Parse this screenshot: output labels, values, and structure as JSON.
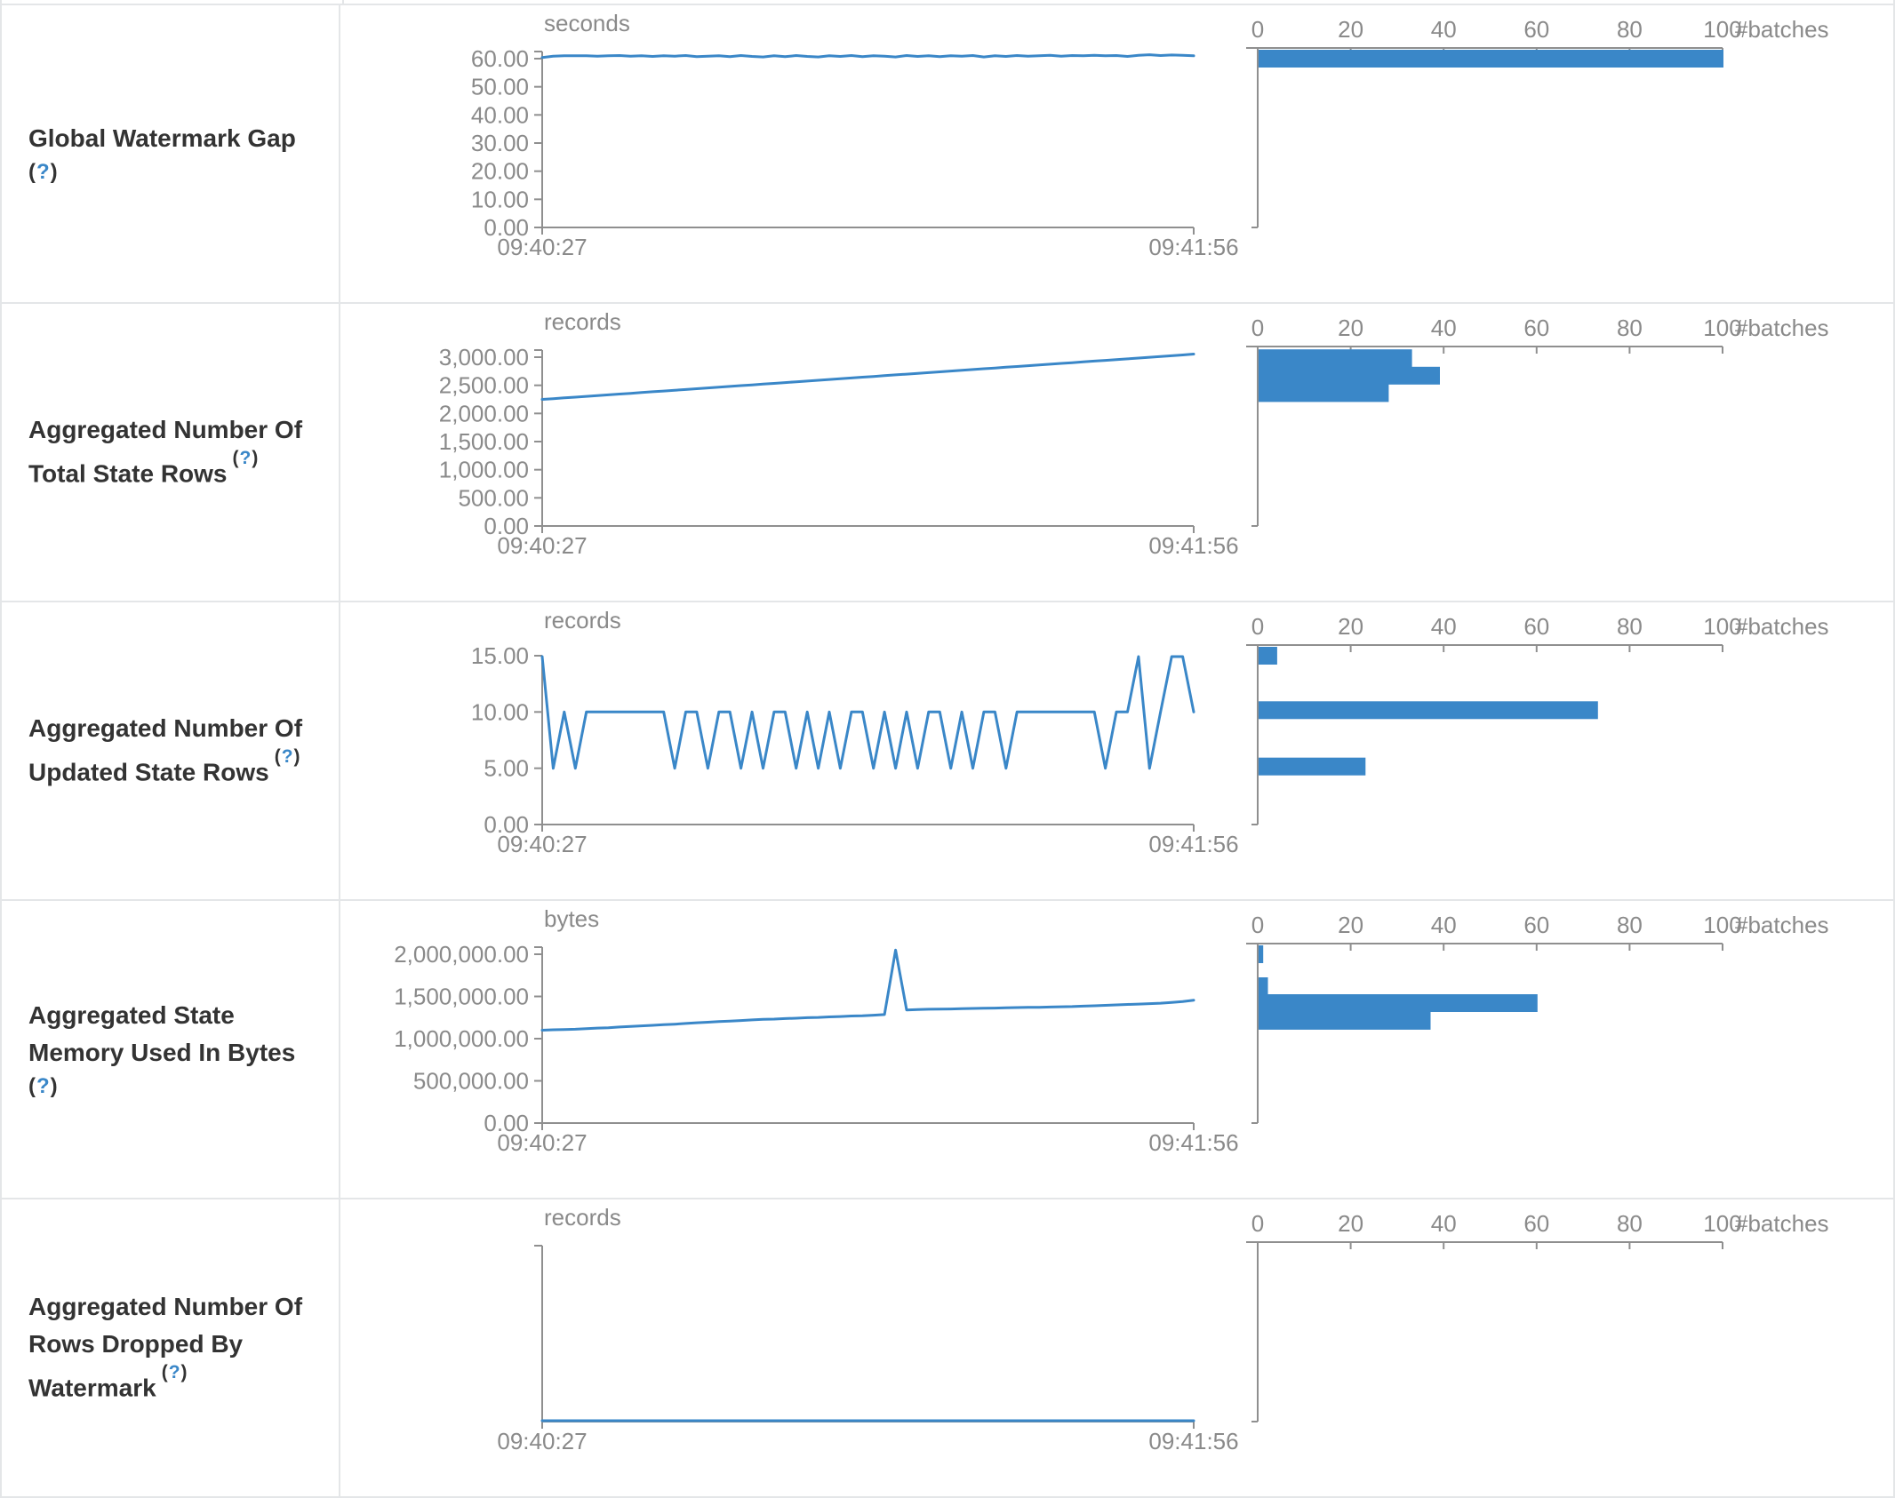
{
  "colors": {
    "accent_blue": "#3a87c8",
    "axis_gray": "#8f8f8f",
    "tick_text_gray": "#8a8a8a",
    "label_text": "#333333",
    "help_blue": "#3a87c8",
    "border": "#e4e6e8"
  },
  "help": {
    "open": "(",
    "q": "?",
    "close": ")"
  },
  "time_axis": {
    "start": "09:40:27",
    "end": "09:41:56"
  },
  "histogram_axis": {
    "tick_labels": [
      "0",
      "20",
      "40",
      "60",
      "80",
      "100"
    ],
    "unit": "#batches",
    "max": 100
  },
  "rows": [
    {
      "label_lines": [
        "Global Watermark Gap"
      ],
      "help_position": "own-line"
    },
    {
      "label_lines": [
        "Aggregated Number Of",
        "Total State Rows"
      ],
      "help_position": "inline"
    },
    {
      "label_lines": [
        "Aggregated Number Of",
        "Updated State Rows"
      ],
      "help_position": "inline"
    },
    {
      "label_lines": [
        "Aggregated State",
        "Memory Used In Bytes"
      ],
      "help_position": "own-line"
    },
    {
      "label_lines": [
        "Aggregated Number Of",
        "Rows Dropped By",
        "Watermark"
      ],
      "help_position": "inline"
    }
  ],
  "chart_data": [
    {
      "name": "global-watermark-gap",
      "timeline": {
        "type": "line",
        "unit": "seconds",
        "x_start": "09:40:27",
        "x_end": "09:41:56",
        "y_ticks": [
          {
            "v": 0,
            "label": "0.00"
          },
          {
            "v": 10,
            "label": "10.00"
          },
          {
            "v": 20,
            "label": "20.00"
          },
          {
            "v": 30,
            "label": "30.00"
          },
          {
            "v": 40,
            "label": "40.00"
          },
          {
            "v": 50,
            "label": "50.00"
          },
          {
            "v": 60,
            "label": "60.00"
          }
        ],
        "y_top": 60,
        "headroom": true,
        "values": [
          60.4,
          60.9,
          61.0,
          61.0,
          61.0,
          60.9,
          61.0,
          61.1,
          60.9,
          61.0,
          60.8,
          61.0,
          60.9,
          61.1,
          60.7,
          60.9,
          61.0,
          60.7,
          61.1,
          60.8,
          60.6,
          61.0,
          60.7,
          61.1,
          60.8,
          60.6,
          61.0,
          60.8,
          61.1,
          60.7,
          61.0,
          60.9,
          60.6,
          61.1,
          60.8,
          61.0,
          60.7,
          61.0,
          60.9,
          61.1,
          60.6,
          61.0,
          60.8,
          61.1,
          60.9,
          61.0,
          61.2,
          60.9,
          61.1,
          61.0,
          61.2,
          61.0,
          61.1,
          60.8,
          61.2,
          61.4,
          61.1,
          61.3,
          61.2,
          61.0
        ]
      },
      "histogram": {
        "type": "bar",
        "unit": "#batches",
        "bins": [
          {
            "value": 61,
            "count": 100
          }
        ]
      }
    },
    {
      "name": "aggregated-number-of-total-state-rows",
      "timeline": {
        "type": "line",
        "unit": "records",
        "x_start": "09:40:27",
        "x_end": "09:41:56",
        "y_ticks": [
          {
            "v": 0,
            "label": "0.00"
          },
          {
            "v": 500,
            "label": "500.00"
          },
          {
            "v": 1000,
            "label": "1,000.00"
          },
          {
            "v": 1500,
            "label": "1,500.00"
          },
          {
            "v": 2000,
            "label": "2,000.00"
          },
          {
            "v": 2500,
            "label": "2,500.00"
          },
          {
            "v": 3000,
            "label": "3,000.00"
          }
        ],
        "y_top": 3000,
        "headroom": true,
        "values": [
          2250,
          2263,
          2277,
          2290,
          2304,
          2318,
          2331,
          2345,
          2358,
          2372,
          2386,
          2399,
          2413,
          2426,
          2440,
          2454,
          2467,
          2481,
          2494,
          2508,
          2522,
          2535,
          2549,
          2562,
          2576,
          2590,
          2603,
          2617,
          2630,
          2644,
          2658,
          2671,
          2685,
          2698,
          2712,
          2726,
          2739,
          2753,
          2766,
          2780,
          2794,
          2807,
          2821,
          2834,
          2848,
          2862,
          2875,
          2889,
          2902,
          2916,
          2930,
          2943,
          2957,
          2970,
          2984,
          2998,
          3011,
          3025,
          3040,
          3055
        ]
      },
      "histogram": {
        "type": "bar",
        "unit": "#batches",
        "bins": [
          {
            "value": 2950,
            "count": 33
          },
          {
            "value": 2640,
            "count": 39
          },
          {
            "value": 2330,
            "count": 28
          }
        ]
      }
    },
    {
      "name": "aggregated-number-of-updated-state-rows",
      "timeline": {
        "type": "line",
        "unit": "records",
        "x_start": "09:40:27",
        "x_end": "09:41:56",
        "y_ticks": [
          {
            "v": 0,
            "label": "0.00"
          },
          {
            "v": 5,
            "label": "5.00"
          },
          {
            "v": 10,
            "label": "10.00"
          },
          {
            "v": 15,
            "label": "15.00"
          }
        ],
        "y_top": 15,
        "headroom": false,
        "values": [
          15,
          5,
          10,
          5,
          10,
          10,
          10,
          10,
          10,
          10,
          10,
          10,
          5,
          10,
          10,
          5,
          10,
          10,
          5,
          10,
          5,
          10,
          10,
          5,
          10,
          5,
          10,
          5,
          10,
          10,
          5,
          10,
          5,
          10,
          5,
          10,
          10,
          5,
          10,
          5,
          10,
          10,
          5,
          10,
          10,
          10,
          10,
          10,
          10,
          10,
          10,
          5,
          10,
          10,
          15,
          5,
          10,
          15,
          15,
          10
        ]
      },
      "histogram": {
        "type": "bar",
        "unit": "#batches",
        "bins": [
          {
            "value": 15,
            "count": 4
          },
          {
            "value": 10,
            "count": 73
          },
          {
            "value": 5,
            "count": 23
          }
        ]
      }
    },
    {
      "name": "aggregated-state-memory-used-in-bytes",
      "timeline": {
        "type": "line",
        "unit": "bytes",
        "x_start": "09:40:27",
        "x_end": "09:41:56",
        "y_ticks": [
          {
            "v": 0,
            "label": "0.00"
          },
          {
            "v": 500000,
            "label": "500,000.00"
          },
          {
            "v": 1000000,
            "label": "1,000,000.00"
          },
          {
            "v": 1500000,
            "label": "1,500,000.00"
          },
          {
            "v": 2000000,
            "label": "2,000,000.00"
          }
        ],
        "y_top": 2000000,
        "headroom": true,
        "values": [
          1100000,
          1105000,
          1108000,
          1112000,
          1118000,
          1125000,
          1130000,
          1138000,
          1145000,
          1152000,
          1158000,
          1165000,
          1172000,
          1180000,
          1188000,
          1195000,
          1202000,
          1208000,
          1215000,
          1222000,
          1228000,
          1232000,
          1238000,
          1242000,
          1248000,
          1252000,
          1258000,
          1262000,
          1268000,
          1272000,
          1278000,
          1285000,
          2050000,
          1340000,
          1345000,
          1348000,
          1350000,
          1352000,
          1355000,
          1358000,
          1360000,
          1362000,
          1365000,
          1368000,
          1370000,
          1372000,
          1375000,
          1378000,
          1380000,
          1385000,
          1390000,
          1395000,
          1400000,
          1405000,
          1410000,
          1415000,
          1420000,
          1430000,
          1440000,
          1455000
        ]
      },
      "histogram": {
        "type": "bar",
        "unit": "#batches",
        "bins": [
          {
            "value": 2050000,
            "count": 1
          },
          {
            "value": 1600000,
            "count": 2
          },
          {
            "value": 1400000,
            "count": 60
          },
          {
            "value": 1190000,
            "count": 37
          }
        ]
      }
    },
    {
      "name": "aggregated-number-of-rows-dropped-by-watermark",
      "timeline": {
        "type": "line",
        "unit": "records",
        "x_start": "09:40:27",
        "x_end": "09:41:56",
        "y_ticks": [],
        "y_top": 1,
        "headroom": true,
        "values": [
          0,
          0,
          0,
          0,
          0,
          0,
          0,
          0,
          0,
          0,
          0,
          0,
          0,
          0,
          0,
          0,
          0,
          0,
          0,
          0,
          0,
          0,
          0,
          0,
          0,
          0,
          0,
          0,
          0,
          0,
          0,
          0,
          0,
          0,
          0,
          0,
          0,
          0,
          0,
          0,
          0,
          0,
          0,
          0,
          0,
          0,
          0,
          0,
          0,
          0,
          0,
          0,
          0,
          0,
          0,
          0,
          0,
          0,
          0,
          0
        ]
      },
      "histogram": {
        "type": "bar",
        "unit": "#batches",
        "bins": []
      }
    }
  ]
}
